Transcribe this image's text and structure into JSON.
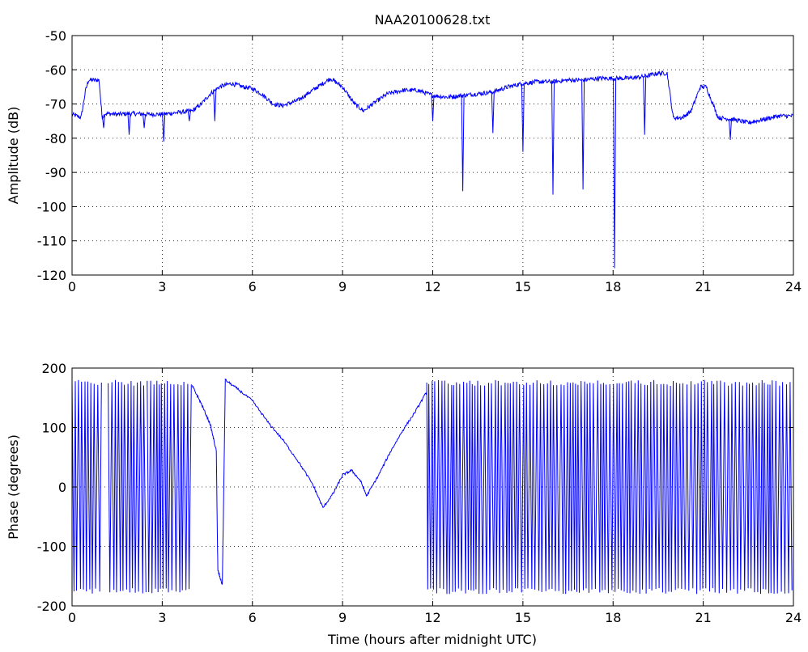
{
  "chart_data": [
    {
      "type": "line",
      "title": "NAA20100628.txt",
      "xlabel": "",
      "ylabel": "Amplitude (dB)",
      "xlim": [
        0,
        24
      ],
      "ylim": [
        -120,
        -50
      ],
      "xticks": [
        "0",
        "3",
        "6",
        "9",
        "12",
        "15",
        "18",
        "21",
        "24"
      ],
      "yticks": [
        "-50",
        "-60",
        "-70",
        "-80",
        "-90",
        "-100",
        "-110",
        "-120"
      ],
      "grid": true,
      "series_color": "#0000ff",
      "series": [
        {
          "x": [
            0,
            0.3,
            0.45,
            0.55,
            0.9,
            1.0,
            1.1,
            1.5,
            2.0,
            2.5,
            3.0,
            3.5,
            4.0,
            4.3,
            4.6,
            4.9,
            5.3,
            5.7,
            6.0,
            6.3,
            6.7,
            7.0,
            7.5,
            8.0,
            8.6,
            9.0,
            9.4,
            9.7,
            10.0,
            10.5,
            11.0,
            11.5,
            12.0,
            12.5,
            13.0,
            13.5,
            14.0,
            14.5,
            15.0,
            15.5,
            16.0,
            16.5,
            17.0,
            17.5,
            18.0,
            18.5,
            19.0,
            19.5,
            19.8,
            20.0,
            20.3,
            20.6,
            20.9,
            21.1,
            21.5,
            22.0,
            22.5,
            23.0,
            23.5,
            24.0
          ],
          "y": [
            -73,
            -74,
            -66,
            -63,
            -63,
            -74,
            -72.8,
            -73,
            -72.8,
            -73,
            -73,
            -72.5,
            -72,
            -70,
            -67,
            -65,
            -64,
            -65,
            -65.5,
            -67,
            -70,
            -70.5,
            -69,
            -66,
            -62.5,
            -65,
            -70,
            -72,
            -70,
            -67,
            -66,
            -66,
            -67.5,
            -68,
            -67.5,
            -67,
            -66.5,
            -65,
            -64,
            -63.5,
            -63.5,
            -63,
            -63,
            -62.5,
            -62.5,
            -62.5,
            -62,
            -61,
            -61,
            -74,
            -74,
            -72,
            -65,
            -65,
            -74,
            -74.5,
            -75.5,
            -74.5,
            -73.5,
            -73.5
          ]
        }
      ],
      "dips": [
        {
          "x": 1.05,
          "y": -77
        },
        {
          "x": 1.9,
          "y": -79
        },
        {
          "x": 2.4,
          "y": -77
        },
        {
          "x": 3.05,
          "y": -81
        },
        {
          "x": 3.9,
          "y": -75
        },
        {
          "x": 4.75,
          "y": -75
        },
        {
          "x": 12.0,
          "y": -75
        },
        {
          "x": 13.0,
          "y": -95.5
        },
        {
          "x": 14.0,
          "y": -78.5
        },
        {
          "x": 15.0,
          "y": -84
        },
        {
          "x": 16.0,
          "y": -96.5
        },
        {
          "x": 17.0,
          "y": -95
        },
        {
          "x": 18.05,
          "y": -118
        },
        {
          "x": 19.05,
          "y": -79
        },
        {
          "x": 21.9,
          "y": -80.5
        }
      ]
    },
    {
      "type": "line",
      "title": "",
      "xlabel": "Time (hours after midnight UTC)",
      "ylabel": "Phase (degrees)",
      "xlim": [
        0,
        24
      ],
      "ylim": [
        -200,
        200
      ],
      "xticks": [
        "0",
        "3",
        "6",
        "9",
        "12",
        "15",
        "18",
        "21",
        "24"
      ],
      "yticks": [
        "200",
        "100",
        "0",
        "-100",
        "-200"
      ],
      "grid": true,
      "series_color": "#0000ff",
      "oscillation_intervals": [
        [
          0,
          1.0
        ],
        [
          1.2,
          2.5
        ],
        [
          2.5,
          4.0
        ],
        [
          11.8,
          24
        ]
      ],
      "oscillation_range": [
        -180,
        180
      ],
      "series": [
        {
          "x": [
            4.0,
            4.3,
            4.6,
            4.8,
            4.85,
            5.0,
            5.1,
            5.5,
            6.0,
            6.5,
            7.0,
            7.5,
            8.0,
            8.35,
            8.7,
            9.0,
            9.3,
            9.6,
            9.8,
            10.2,
            10.6,
            11.0,
            11.4,
            11.8
          ],
          "y": [
            170,
            140,
            105,
            60,
            -140,
            -165,
            180,
            165,
            145,
            110,
            80,
            45,
            5,
            -35,
            -10,
            20,
            28,
            10,
            -15,
            20,
            60,
            95,
            125,
            160
          ]
        }
      ]
    }
  ]
}
